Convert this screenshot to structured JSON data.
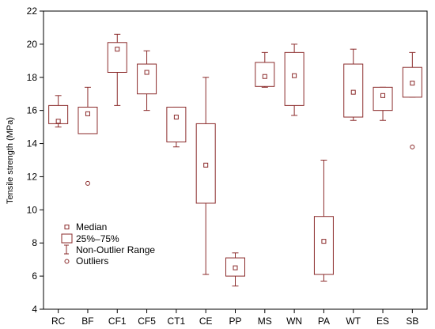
{
  "chart_data": {
    "type": "boxplot",
    "ylabel": "Tensile strength (MPa)",
    "xlabel": "",
    "ylim": [
      4,
      22
    ],
    "yticks": [
      4,
      6,
      8,
      10,
      12,
      14,
      16,
      18,
      20,
      22
    ],
    "grid": false,
    "legend_position": "bottom-left",
    "colors": {
      "box": "#8b2b2b",
      "outlier": "#8b2b2b",
      "axis": "#000000"
    },
    "legend": {
      "median": "Median",
      "box": "25%–75%",
      "range": "Non-Outlier Range",
      "outliers": "Outliers"
    },
    "categories": [
      "RC",
      "BF",
      "CF1",
      "CF5",
      "CT1",
      "CE",
      "PP",
      "MS",
      "WN",
      "PA",
      "WT",
      "ES",
      "SB"
    ],
    "boxes": [
      {
        "category": "RC",
        "min": 15.0,
        "q1": 15.2,
        "median": 15.35,
        "q3": 16.3,
        "max": 16.9
      },
      {
        "category": "BF",
        "min": 14.6,
        "q1": 14.6,
        "median": 15.8,
        "q3": 16.2,
        "max": 17.4,
        "outliers": [
          11.6
        ]
      },
      {
        "category": "CF1",
        "min": 16.3,
        "q1": 18.3,
        "median": 19.7,
        "q3": 20.1,
        "max": 20.6
      },
      {
        "category": "CF5",
        "min": 16.0,
        "q1": 17.0,
        "median": 18.3,
        "q3": 18.8,
        "max": 19.6
      },
      {
        "category": "CT1",
        "min": 13.8,
        "q1": 14.1,
        "median": 15.6,
        "q3": 16.2,
        "max": 16.2
      },
      {
        "category": "CE",
        "min": 6.1,
        "q1": 10.4,
        "median": 12.7,
        "q3": 15.2,
        "max": 18.0
      },
      {
        "category": "PP",
        "min": 5.4,
        "q1": 6.0,
        "median": 6.5,
        "q3": 7.1,
        "max": 7.4
      },
      {
        "category": "MS",
        "min": 17.4,
        "q1": 17.45,
        "median": 18.05,
        "q3": 18.9,
        "max": 19.5
      },
      {
        "category": "WN",
        "min": 15.7,
        "q1": 16.3,
        "median": 18.1,
        "q3": 19.5,
        "max": 20.0
      },
      {
        "category": "PA",
        "min": 5.7,
        "q1": 6.1,
        "median": 8.1,
        "q3": 9.6,
        "max": 13.0
      },
      {
        "category": "WT",
        "min": 15.4,
        "q1": 15.6,
        "median": 17.1,
        "q3": 18.8,
        "max": 19.7
      },
      {
        "category": "ES",
        "min": 15.4,
        "q1": 16.0,
        "median": 16.9,
        "q3": 17.4,
        "max": 17.4
      },
      {
        "category": "SB",
        "min": 16.8,
        "q1": 16.8,
        "median": 17.65,
        "q3": 18.6,
        "max": 19.5,
        "outliers": [
          13.8
        ]
      }
    ]
  }
}
